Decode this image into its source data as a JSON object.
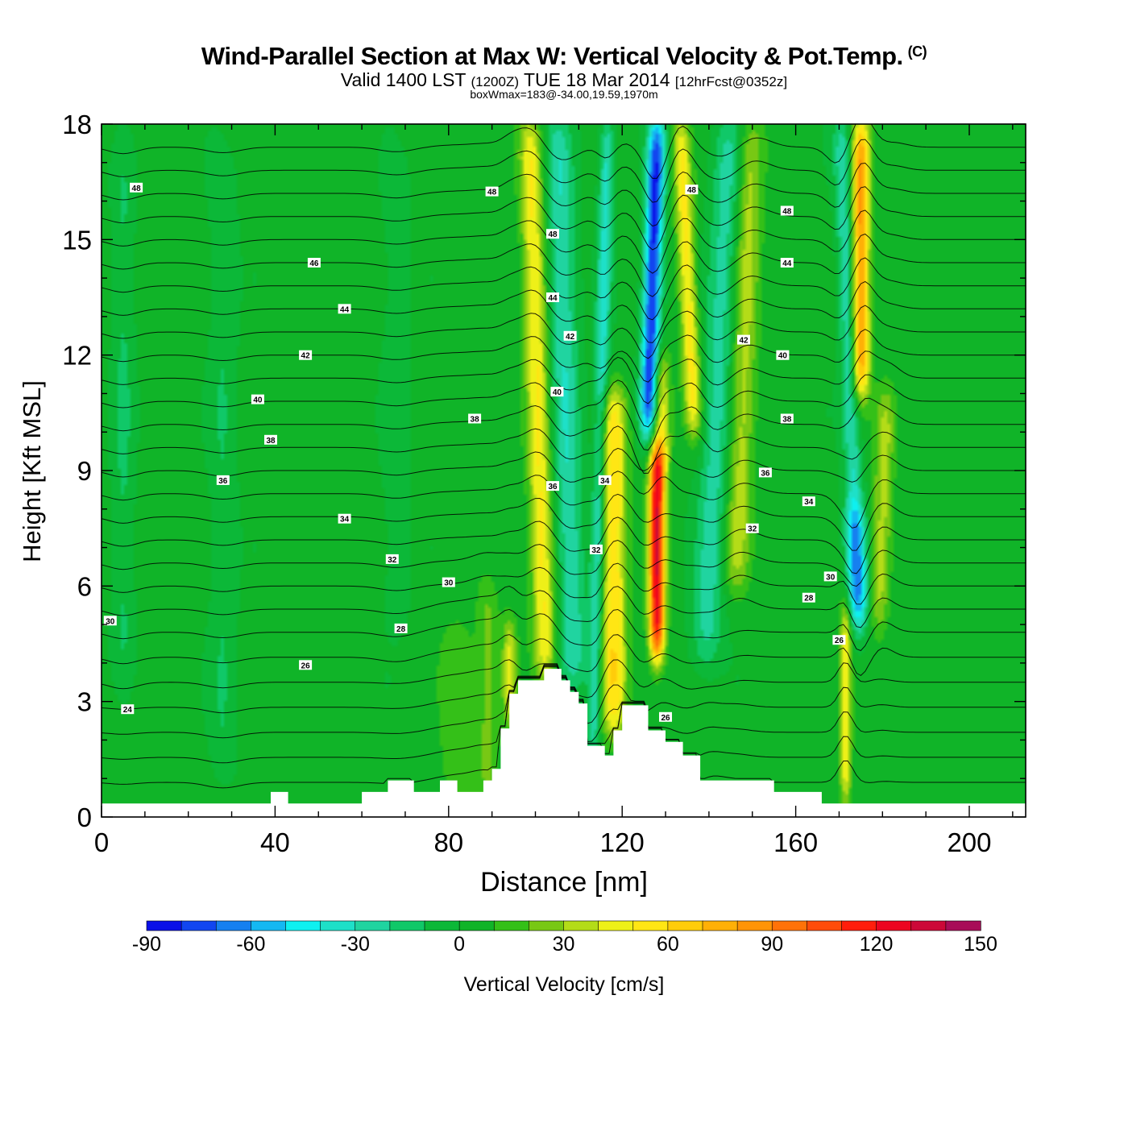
{
  "header": {
    "title": "Wind-Parallel Section at Max W: Vertical Velocity & Pot.Temp.",
    "copyright": "(C)",
    "subtitle_a": "Valid 1400 LST",
    "subtitle_zone": "(1200Z)",
    "subtitle_b": "TUE 18 Mar 2014",
    "subtitle_fcst": "[12hrFcst@0352z]",
    "note": "boxWmax=183@-34.00,19.59,1970m"
  },
  "chart_data": {
    "type": "heatmap",
    "title": "Wind-Parallel Section at Max W: Vertical Velocity & Pot.Temp.",
    "xlabel": "Distance [nm]",
    "ylabel": "Height [Kft MSL]",
    "xlim": [
      0,
      213
    ],
    "ylim": [
      0,
      18
    ],
    "xticks": [
      0,
      40,
      80,
      120,
      160,
      200
    ],
    "yticks": [
      0,
      3,
      6,
      9,
      12,
      15,
      18
    ],
    "colorbar": {
      "label": "Vertical Velocity [cm/s]",
      "ticks": [
        -90,
        -60,
        -30,
        0,
        30,
        60,
        90,
        120,
        150
      ],
      "levels": [
        -90,
        -80,
        -70,
        -60,
        -50,
        -40,
        -30,
        -20,
        -10,
        0,
        10,
        20,
        30,
        40,
        50,
        60,
        70,
        80,
        90,
        100,
        110,
        120,
        130,
        140,
        150
      ],
      "colors": [
        "#0a10e8",
        "#1246f0",
        "#1680f0",
        "#14b8f2",
        "#0ef0f0",
        "#1ee0c8",
        "#20d4a0",
        "#10c868",
        "#0cb838",
        "#10b428",
        "#34c018",
        "#78c814",
        "#b4dc18",
        "#eef018",
        "#ffe614",
        "#ffcc0a",
        "#ffb006",
        "#ff9406",
        "#ff7208",
        "#ff4c0a",
        "#ff1e0c",
        "#ec0420",
        "#cc0838",
        "#a80c58"
      ]
    },
    "features": [
      {
        "name": "updraft",
        "x": 100.5,
        "peak": 48,
        "sigma": 2.6,
        "bottom_kft": 3.6,
        "top_kft": 18,
        "tilt": -0.25
      },
      {
        "name": "downdraft",
        "x": 107,
        "peak": -32,
        "sigma": 3.2,
        "bottom_kft": 3.5,
        "top_kft": 18,
        "tilt": -0.25
      },
      {
        "name": "downdraft",
        "x": 115,
        "peak": -38,
        "sigma": 1.6,
        "bottom_kft": 1.8,
        "top_kft": 18,
        "tilt": 0.2
      },
      {
        "name": "updraft",
        "x": 118,
        "peak": 56,
        "sigma": 3.0,
        "bottom_kft": 2.2,
        "top_kft": 11,
        "tilt": 0
      },
      {
        "name": "max-updraft",
        "x": 128,
        "peak": 125,
        "sigma": 1.8,
        "bottom_kft": 4.2,
        "top_kft": 9.5,
        "tilt": 0
      },
      {
        "name": "updraft",
        "x": 129,
        "peak": 46,
        "sigma": 2.0,
        "bottom_kft": 9,
        "top_kft": 12,
        "tilt": 0
      },
      {
        "name": "downdraft",
        "x": 127,
        "peak": -85,
        "sigma": 2.0,
        "bottom_kft": 10,
        "top_kft": 18,
        "tilt": 0.25
      },
      {
        "name": "updraft",
        "x": 135,
        "peak": 50,
        "sigma": 2.0,
        "bottom_kft": 10,
        "top_kft": 18,
        "tilt": -0.4
      },
      {
        "name": "downdraft",
        "x": 142,
        "peak": -28,
        "sigma": 3.5,
        "bottom_kft": 4,
        "top_kft": 18,
        "tilt": 0.4
      },
      {
        "name": "updraft",
        "x": 148,
        "peak": 32,
        "sigma": 3.0,
        "bottom_kft": 6,
        "top_kft": 18,
        "tilt": 0.3
      },
      {
        "name": "updraft",
        "x": 171.5,
        "peak": 48,
        "sigma": 1.3,
        "bottom_kft": 0.5,
        "top_kft": 5.5,
        "tilt": 0
      },
      {
        "name": "downdraft",
        "x": 174,
        "peak": -72,
        "sigma": 2.2,
        "bottom_kft": 5,
        "top_kft": 8,
        "tilt": -0.3
      },
      {
        "name": "downdraft",
        "x": 172,
        "peak": -32,
        "sigma": 2.0,
        "bottom_kft": 8,
        "top_kft": 18,
        "tilt": -0.3
      },
      {
        "name": "updraft",
        "x": 175,
        "peak": 80,
        "sigma": 2.0,
        "bottom_kft": 11,
        "top_kft": 18,
        "tilt": 0
      },
      {
        "name": "updraft",
        "x": 180,
        "peak": 32,
        "sigma": 2.2,
        "bottom_kft": 5,
        "top_kft": 11,
        "tilt": 0.3
      },
      {
        "name": "downdraft",
        "x": 5,
        "peak": -14,
        "sigma": 2.5,
        "bottom_kft": 4,
        "top_kft": 17,
        "tilt": 0
      },
      {
        "name": "downdraft",
        "x": 28,
        "peak": -12,
        "sigma": 3.0,
        "bottom_kft": 1,
        "top_kft": 17,
        "tilt": 0
      },
      {
        "name": "downdraft",
        "x": 68,
        "peak": -10,
        "sigma": 3.0,
        "bottom_kft": 5,
        "top_kft": 17,
        "tilt": 0
      },
      {
        "name": "updraft",
        "x": 89,
        "peak": 20,
        "sigma": 2.5,
        "bottom_kft": 0.5,
        "top_kft": 6,
        "tilt": 0
      },
      {
        "name": "updraft",
        "x": 94,
        "peak": 40,
        "sigma": 1.6,
        "bottom_kft": 2.5,
        "top_kft": 5,
        "tilt": 0
      },
      {
        "name": "updraft",
        "x": 82,
        "peak": 16,
        "sigma": 4.0,
        "bottom_kft": 0.5,
        "top_kft": 5,
        "tilt": 0
      }
    ],
    "terrain_kft": [
      [
        0,
        0.35
      ],
      [
        39,
        0.35
      ],
      [
        39,
        0.65
      ],
      [
        43,
        0.65
      ],
      [
        43,
        0.35
      ],
      [
        60,
        0.35
      ],
      [
        60,
        0.65
      ],
      [
        66,
        0.65
      ],
      [
        66,
        0.95
      ],
      [
        72,
        0.95
      ],
      [
        72,
        0.65
      ],
      [
        78,
        0.65
      ],
      [
        78,
        0.95
      ],
      [
        82,
        0.95
      ],
      [
        82,
        0.65
      ],
      [
        88,
        0.65
      ],
      [
        88,
        0.95
      ],
      [
        90,
        0.95
      ],
      [
        90,
        1.25
      ],
      [
        92,
        1.25
      ],
      [
        92,
        2.3
      ],
      [
        94,
        2.3
      ],
      [
        94,
        3.2
      ],
      [
        96,
        3.2
      ],
      [
        96,
        3.55
      ],
      [
        102,
        3.55
      ],
      [
        102,
        3.85
      ],
      [
        106,
        3.85
      ],
      [
        106,
        3.55
      ],
      [
        108,
        3.55
      ],
      [
        108,
        3.25
      ],
      [
        110,
        3.25
      ],
      [
        110,
        2.95
      ],
      [
        112,
        2.95
      ],
      [
        112,
        1.85
      ],
      [
        116,
        1.85
      ],
      [
        116,
        1.6
      ],
      [
        118,
        1.6
      ],
      [
        118,
        2.25
      ],
      [
        120,
        2.25
      ],
      [
        120,
        2.9
      ],
      [
        126,
        2.9
      ],
      [
        126,
        2.25
      ],
      [
        130,
        2.25
      ],
      [
        130,
        1.95
      ],
      [
        134,
        1.95
      ],
      [
        134,
        1.6
      ],
      [
        138,
        1.6
      ],
      [
        138,
        0.95
      ],
      [
        155,
        0.95
      ],
      [
        155,
        0.65
      ],
      [
        166,
        0.65
      ],
      [
        166,
        0.35
      ],
      [
        213,
        0.35
      ]
    ],
    "theta_contours": {
      "interval": 1,
      "first_value": 21,
      "count": 28,
      "far_field_heights_kft": [
        0.9,
        1.55,
        2.2,
        2.85,
        3.5,
        4.15,
        4.8,
        5.4,
        6.0,
        6.6,
        7.2,
        7.8,
        8.4,
        9.0,
        9.6,
        10.2,
        10.8,
        11.4,
        12.0,
        12.6,
        13.2,
        13.8,
        14.4,
        15.0,
        15.6,
        16.2,
        16.8,
        17.4
      ]
    },
    "theta_labels": [
      {
        "text": "48",
        "x": 8,
        "y": 16.35
      },
      {
        "text": "48",
        "x": 90,
        "y": 16.25
      },
      {
        "text": "48",
        "x": 104,
        "y": 15.15
      },
      {
        "text": "48",
        "x": 136,
        "y": 16.3
      },
      {
        "text": "48",
        "x": 158,
        "y": 15.75
      },
      {
        "text": "46",
        "x": 49,
        "y": 14.4
      },
      {
        "text": "44",
        "x": 56,
        "y": 13.2
      },
      {
        "text": "44",
        "x": 104,
        "y": 13.5
      },
      {
        "text": "44",
        "x": 158,
        "y": 14.4
      },
      {
        "text": "42",
        "x": 47,
        "y": 12.0
      },
      {
        "text": "42",
        "x": 108,
        "y": 12.5
      },
      {
        "text": "42",
        "x": 148,
        "y": 12.4
      },
      {
        "text": "40",
        "x": 36,
        "y": 10.85
      },
      {
        "text": "40",
        "x": 105,
        "y": 11.05
      },
      {
        "text": "40",
        "x": 157,
        "y": 12.0
      },
      {
        "text": "38",
        "x": 39,
        "y": 9.8
      },
      {
        "text": "38",
        "x": 86,
        "y": 10.35
      },
      {
        "text": "38",
        "x": 158,
        "y": 10.35
      },
      {
        "text": "36",
        "x": 28,
        "y": 8.75
      },
      {
        "text": "36",
        "x": 104,
        "y": 8.6
      },
      {
        "text": "36",
        "x": 153,
        "y": 8.95
      },
      {
        "text": "34",
        "x": 56,
        "y": 7.75
      },
      {
        "text": "34",
        "x": 116,
        "y": 8.75
      },
      {
        "text": "34",
        "x": 163,
        "y": 8.2
      },
      {
        "text": "32",
        "x": 67,
        "y": 6.7
      },
      {
        "text": "32",
        "x": 114,
        "y": 6.95
      },
      {
        "text": "32",
        "x": 150,
        "y": 7.5
      },
      {
        "text": "30",
        "x": 2,
        "y": 5.1
      },
      {
        "text": "30",
        "x": 80,
        "y": 6.1
      },
      {
        "text": "30",
        "x": 168,
        "y": 6.25
      },
      {
        "text": "28",
        "x": 69,
        "y": 4.9
      },
      {
        "text": "28",
        "x": 163,
        "y": 5.7
      },
      {
        "text": "26",
        "x": 47,
        "y": 3.95
      },
      {
        "text": "26",
        "x": 170,
        "y": 4.6
      },
      {
        "text": "26",
        "x": 130,
        "y": 2.6
      },
      {
        "text": "24",
        "x": 6,
        "y": 2.8
      }
    ]
  }
}
